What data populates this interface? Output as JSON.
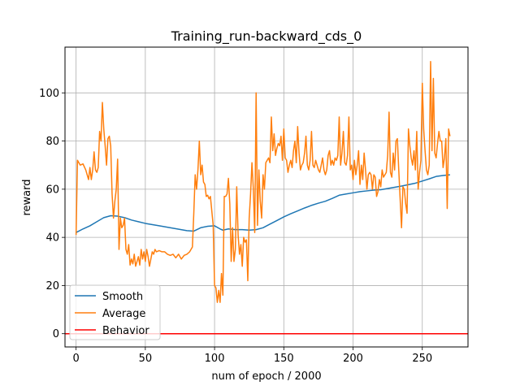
{
  "chart_data": {
    "type": "line",
    "title": "Training_run-backward_cds_0",
    "xlabel": "num of epoch / 2000",
    "ylabel": "reward",
    "xlim": [
      -8,
      283
    ],
    "ylim": [
      -5.5,
      119
    ],
    "xticks": [
      0,
      50,
      100,
      150,
      200,
      250
    ],
    "yticks": [
      0,
      20,
      40,
      60,
      80,
      100
    ],
    "grid": true,
    "legend": "lower-left",
    "series": [
      {
        "name": "Smooth",
        "color": "#1f77b4",
        "points": [
          [
            0,
            42
          ],
          [
            5,
            43.5
          ],
          [
            10,
            44.8
          ],
          [
            15,
            46.5
          ],
          [
            20,
            48.2
          ],
          [
            25,
            49
          ],
          [
            30,
            48.8
          ],
          [
            35,
            48.2
          ],
          [
            40,
            47.2
          ],
          [
            45,
            46.5
          ],
          [
            50,
            45.8
          ],
          [
            60,
            44.8
          ],
          [
            70,
            43.8
          ],
          [
            80,
            42.8
          ],
          [
            85,
            42.6
          ],
          [
            90,
            44
          ],
          [
            95,
            44.6
          ],
          [
            100,
            44.8
          ],
          [
            104,
            43.5
          ],
          [
            106,
            43
          ],
          [
            110,
            43.5
          ],
          [
            115,
            43.2
          ],
          [
            120,
            43.2
          ],
          [
            125,
            43
          ],
          [
            130,
            43.2
          ],
          [
            135,
            44
          ],
          [
            140,
            45.5
          ],
          [
            145,
            47
          ],
          [
            150,
            48.5
          ],
          [
            155,
            49.8
          ],
          [
            160,
            51
          ],
          [
            165,
            52.2
          ],
          [
            170,
            53.3
          ],
          [
            175,
            54.2
          ],
          [
            180,
            55
          ],
          [
            185,
            56.2
          ],
          [
            190,
            57.5
          ],
          [
            195,
            58
          ],
          [
            200,
            58.5
          ],
          [
            205,
            59
          ],
          [
            210,
            59.3
          ],
          [
            215,
            59.6
          ],
          [
            220,
            59.8
          ],
          [
            225,
            60.3
          ],
          [
            230,
            60.8
          ],
          [
            235,
            61.3
          ],
          [
            240,
            61.9
          ],
          [
            245,
            62.5
          ],
          [
            250,
            63.4
          ],
          [
            255,
            64.3
          ],
          [
            260,
            65.3
          ],
          [
            265,
            65.7
          ],
          [
            270,
            66
          ]
        ]
      },
      {
        "name": "Average",
        "color": "#ff7f0e",
        "points": [
          [
            0,
            41
          ],
          [
            1,
            72
          ],
          [
            3,
            70
          ],
          [
            5,
            70.5
          ],
          [
            7,
            68
          ],
          [
            9,
            64
          ],
          [
            10,
            69
          ],
          [
            11,
            64
          ],
          [
            12,
            68
          ],
          [
            13,
            75.5
          ],
          [
            14,
            68
          ],
          [
            15,
            67
          ],
          [
            16,
            69
          ],
          [
            17,
            84
          ],
          [
            18,
            80
          ],
          [
            19,
            96
          ],
          [
            20,
            85
          ],
          [
            21,
            78
          ],
          [
            22,
            70
          ],
          [
            23,
            81
          ],
          [
            24,
            82
          ],
          [
            25,
            78
          ],
          [
            26,
            58
          ],
          [
            27,
            48
          ],
          [
            28,
            55
          ],
          [
            29,
            60
          ],
          [
            30,
            72.5
          ],
          [
            31,
            35
          ],
          [
            32,
            48
          ],
          [
            33,
            44
          ],
          [
            34,
            45
          ],
          [
            35,
            48
          ],
          [
            36,
            35
          ],
          [
            37,
            33
          ],
          [
            38,
            37
          ],
          [
            39,
            28.5
          ],
          [
            40,
            31
          ],
          [
            41,
            29
          ],
          [
            42,
            33
          ],
          [
            43,
            28
          ],
          [
            44,
            30
          ],
          [
            45,
            32
          ],
          [
            46,
            28.5
          ],
          [
            47,
            35
          ],
          [
            48,
            31
          ],
          [
            49,
            34
          ],
          [
            50,
            30
          ],
          [
            51,
            35
          ],
          [
            52,
            32
          ],
          [
            53,
            28
          ],
          [
            54,
            31
          ],
          [
            55,
            34
          ],
          [
            56,
            33
          ],
          [
            57,
            35
          ],
          [
            58,
            34
          ],
          [
            60,
            34.5
          ],
          [
            62,
            34
          ],
          [
            64,
            34
          ],
          [
            66,
            33
          ],
          [
            68,
            32.5
          ],
          [
            70,
            33
          ],
          [
            72,
            31.5
          ],
          [
            74,
            33
          ],
          [
            76,
            31
          ],
          [
            78,
            32.5
          ],
          [
            80,
            33
          ],
          [
            82,
            34
          ],
          [
            84,
            36
          ],
          [
            85,
            50
          ],
          [
            86,
            66
          ],
          [
            87,
            60
          ],
          [
            88,
            68
          ],
          [
            89,
            80
          ],
          [
            90,
            66
          ],
          [
            91,
            70
          ],
          [
            92,
            63
          ],
          [
            93,
            62
          ],
          [
            94,
            57
          ],
          [
            95,
            57.5
          ],
          [
            96,
            56
          ],
          [
            97,
            57
          ],
          [
            98,
            51
          ],
          [
            99,
            45
          ],
          [
            100,
            20
          ],
          [
            101,
            19
          ],
          [
            102,
            13
          ],
          [
            103,
            18
          ],
          [
            104,
            13
          ],
          [
            105,
            25
          ],
          [
            106,
            16
          ],
          [
            107,
            57
          ],
          [
            108,
            57
          ],
          [
            109,
            58
          ],
          [
            110,
            64.5
          ],
          [
            111,
            54
          ],
          [
            112,
            30
          ],
          [
            113,
            44
          ],
          [
            114,
            30
          ],
          [
            115,
            35
          ],
          [
            116,
            61
          ],
          [
            117,
            41
          ],
          [
            118,
            33
          ],
          [
            119,
            37
          ],
          [
            120,
            28
          ],
          [
            121,
            40
          ],
          [
            122,
            38
          ],
          [
            123,
            39
          ],
          [
            124,
            22
          ],
          [
            125,
            48
          ],
          [
            126,
            58
          ],
          [
            127,
            71
          ],
          [
            128,
            60
          ],
          [
            129,
            42
          ],
          [
            130,
            100
          ],
          [
            131,
            45
          ],
          [
            132,
            68
          ],
          [
            133,
            55
          ],
          [
            134,
            48
          ],
          [
            135,
            66
          ],
          [
            136,
            60
          ],
          [
            137,
            71
          ],
          [
            138,
            72
          ],
          [
            139,
            73
          ],
          [
            140,
            71
          ],
          [
            141,
            90
          ],
          [
            142,
            76
          ],
          [
            143,
            83
          ],
          [
            144,
            74
          ],
          [
            145,
            77
          ],
          [
            146,
            79
          ],
          [
            147,
            78
          ],
          [
            148,
            82
          ],
          [
            149,
            72
          ],
          [
            150,
            85
          ],
          [
            151,
            73
          ],
          [
            152,
            72
          ],
          [
            153,
            67
          ],
          [
            154,
            70
          ],
          [
            155,
            72
          ],
          [
            156,
            69
          ],
          [
            157,
            76
          ],
          [
            158,
            80
          ],
          [
            159,
            71
          ],
          [
            160,
            86
          ],
          [
            161,
            75
          ],
          [
            162,
            68
          ],
          [
            163,
            70
          ],
          [
            164,
            71
          ],
          [
            165,
            75
          ],
          [
            166,
            82
          ],
          [
            167,
            70
          ],
          [
            168,
            68
          ],
          [
            169,
            72
          ],
          [
            170,
            84
          ],
          [
            171,
            70
          ],
          [
            172,
            69
          ],
          [
            173,
            72
          ],
          [
            174,
            70
          ],
          [
            175,
            68
          ],
          [
            176,
            67
          ],
          [
            177,
            70
          ],
          [
            178,
            73
          ],
          [
            179,
            68
          ],
          [
            180,
            66
          ],
          [
            181,
            68
          ],
          [
            182,
            74
          ],
          [
            183,
            76
          ],
          [
            184,
            70
          ],
          [
            185,
            72
          ],
          [
            186,
            70
          ],
          [
            187,
            73
          ],
          [
            188,
            72
          ],
          [
            189,
            74
          ],
          [
            190,
            90
          ],
          [
            191,
            70
          ],
          [
            192,
            75
          ],
          [
            193,
            84
          ],
          [
            194,
            71
          ],
          [
            195,
            70
          ],
          [
            196,
            74
          ],
          [
            197,
            90
          ],
          [
            198,
            68
          ],
          [
            199,
            70
          ],
          [
            200,
            64
          ],
          [
            201,
            72
          ],
          [
            202,
            66
          ],
          [
            203,
            70
          ],
          [
            204,
            76
          ],
          [
            205,
            62
          ],
          [
            206,
            70
          ],
          [
            207,
            64
          ],
          [
            208,
            75
          ],
          [
            209,
            68
          ],
          [
            210,
            60
          ],
          [
            211,
            66
          ],
          [
            212,
            67
          ],
          [
            213,
            66
          ],
          [
            214,
            60
          ],
          [
            215,
            66
          ],
          [
            216,
            65
          ],
          [
            217,
            57
          ],
          [
            218,
            59
          ],
          [
            219,
            64
          ],
          [
            220,
            61
          ],
          [
            221,
            68
          ],
          [
            222,
            65
          ],
          [
            223,
            66
          ],
          [
            224,
            67
          ],
          [
            225,
            74
          ],
          [
            226,
            92
          ],
          [
            227,
            67
          ],
          [
            228,
            65
          ],
          [
            229,
            75
          ],
          [
            230,
            68
          ],
          [
            231,
            80
          ],
          [
            232,
            81
          ],
          [
            233,
            68
          ],
          [
            234,
            56
          ],
          [
            235,
            44
          ],
          [
            236,
            61
          ],
          [
            237,
            60
          ],
          [
            238,
            54
          ],
          [
            239,
            50
          ],
          [
            240,
            85
          ],
          [
            241,
            78
          ],
          [
            242,
            73
          ],
          [
            243,
            70
          ],
          [
            244,
            76
          ],
          [
            245,
            68
          ],
          [
            246,
            84
          ],
          [
            247,
            60
          ],
          [
            248,
            67
          ],
          [
            249,
            72
          ],
          [
            250,
            104
          ],
          [
            251,
            85
          ],
          [
            252,
            76
          ],
          [
            253,
            68
          ],
          [
            254,
            66
          ],
          [
            255,
            70
          ],
          [
            256,
            113
          ],
          [
            257,
            76
          ],
          [
            258,
            106
          ],
          [
            259,
            75
          ],
          [
            260,
            73
          ],
          [
            261,
            79
          ],
          [
            262,
            84
          ],
          [
            263,
            80
          ],
          [
            264,
            80
          ],
          [
            265,
            69
          ],
          [
            266,
            73
          ],
          [
            267,
            81
          ],
          [
            268,
            52
          ],
          [
            269,
            85
          ],
          [
            270,
            82
          ]
        ]
      },
      {
        "name": "Behavior",
        "color": "#ff0000",
        "points": [
          [
            -8,
            0
          ],
          [
            283,
            0
          ]
        ]
      }
    ]
  }
}
